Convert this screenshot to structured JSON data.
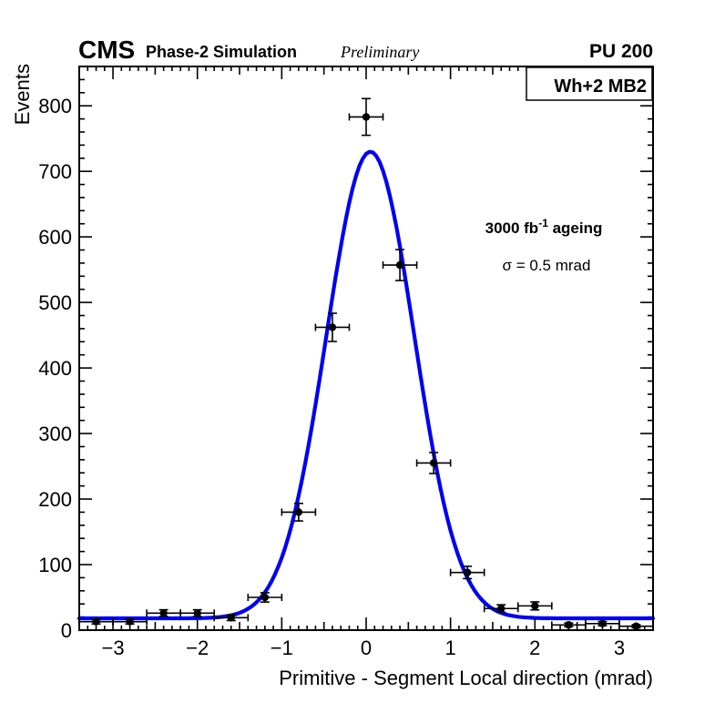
{
  "header": {
    "experiment": "CMS",
    "subtitle": "Phase-2 Simulation",
    "status": "Preliminary",
    "pileup": "PU 200"
  },
  "chart_data": {
    "type": "scatter",
    "title": "",
    "xlabel": "Primitive - Segment Local direction (mrad)",
    "ylabel": "Events",
    "xlim": [
      -3.4,
      3.4
    ],
    "ylim": [
      0,
      860
    ],
    "xticks": [
      -3,
      -2,
      -1,
      0,
      1,
      2,
      3
    ],
    "yticks": [
      0,
      100,
      200,
      300,
      400,
      500,
      600,
      700,
      800
    ],
    "x_minor_step": 0.1,
    "y_minor_step": 20,
    "grid": false,
    "pave_label": "Wh+2 MB2",
    "annotations": {
      "luminosity": {
        "pre": "3000 fb",
        "sup": "-1",
        "post": " ageing"
      },
      "resolution": "σ = 0.5 mrad"
    },
    "series": [
      {
        "name": "data",
        "marker": "filled-circle",
        "color": "#000000",
        "x": [
          -3.2,
          -2.8,
          -2.4,
          -2.0,
          -1.6,
          -1.2,
          -0.8,
          -0.4,
          0.0,
          0.4,
          0.8,
          1.2,
          1.6,
          2.0,
          2.4,
          2.8,
          3.2
        ],
        "y": [
          13,
          13,
          26,
          26,
          19,
          50,
          180,
          462,
          783,
          557,
          255,
          88,
          33,
          37,
          8,
          10,
          6
        ],
        "xerr": 0.2,
        "yerr": [
          3.6,
          3.6,
          5.1,
          5.1,
          4.4,
          7.1,
          13.4,
          21.5,
          28.0,
          23.6,
          16.0,
          9.4,
          5.7,
          6.1,
          2.8,
          3.2,
          2.4
        ]
      }
    ],
    "fit": {
      "name": "gaussian-plus-constant",
      "color": "#0000f2",
      "mean": 0.05,
      "sigma": 0.52,
      "amplitude": 712,
      "constant": 18
    }
  }
}
